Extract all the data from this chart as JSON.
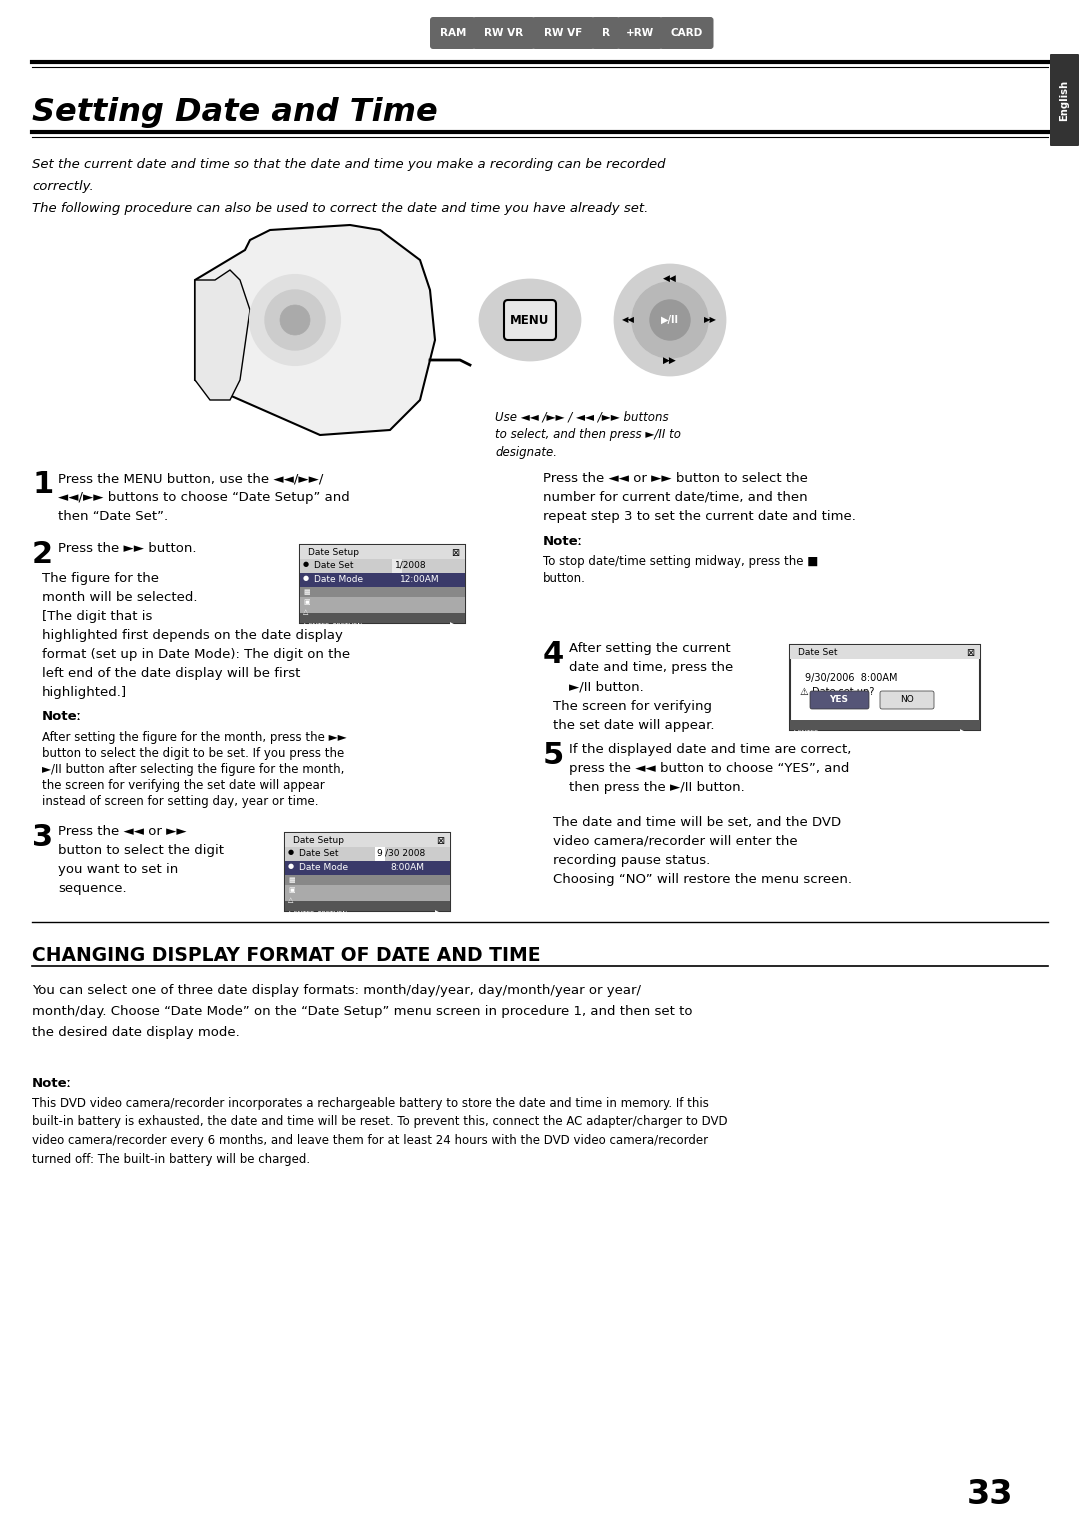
{
  "bg_color": "#ffffff",
  "page_number": "33",
  "tab_labels": [
    "RAM",
    "RW VR",
    "RW VF",
    "R",
    "+RW",
    "CARD"
  ],
  "tab_color": "#666666",
  "tab_text_color": "#ffffff",
  "title": "Setting Date and Time",
  "intro_line1": "Set the current date and time so that the date and time you make a recording can be recorded",
  "intro_line2": "correctly.",
  "intro_line3": "The following procedure can also be used to correct the date and time you have already set.",
  "menu_caption_line1": "Use ◄◄ /►► / ◄◄ /►► buttons",
  "menu_caption_line2": "to select, and then press ►/II to",
  "menu_caption_line3": "designate.",
  "s1_bold": "1",
  "s1_t1": "Press the MENU button, use the ◄◄/►►/",
  "s1_t2": "◄◄/►► buttons to choose “Date Setup” and",
  "s1_t3": "then “Date Set”.",
  "s2_bold": "2",
  "s2_t1": "Press the ►► button.",
  "s2_sub1": "The figure for the",
  "s2_sub2": "month will be selected.",
  "s2_sub3": "[The digit that is",
  "s2_sub4": "highlighted first depends on the date display",
  "s2_sub5": "format (set up in Date Mode): The digit on the",
  "s2_sub6": "left end of the date display will be first",
  "s2_sub7": "highlighted.]",
  "s2_note_hdr": "Noteː",
  "s2_note1": "After setting the figure for the month, press the ►►",
  "s2_note2": "button to select the digit to be set. If you press the",
  "s2_note3": "►/II button after selecting the figure for the month,",
  "s2_note4": "the screen for verifying the set date will appear",
  "s2_note5": "instead of screen for setting day, year or time.",
  "s3_bold": "3",
  "s3_t1": "Press the ◄◄ or ►►",
  "s3_t2": "button to select the digit",
  "s3_t3": "you want to set in",
  "s3_t4": "sequence.",
  "r_above_note_hdr": "Noteː",
  "r_above_note1": "To stop date/time setting midway, press the ■",
  "r_above_note2": "button.",
  "r_step1_t1": "Press the ◄◄ or ►► button to select the",
  "r_step1_t2": "number for current date/time, and then",
  "r_step1_t3": "repeat step 3 to set the current date and time.",
  "s4_bold": "4",
  "s4_t1": "After setting the current",
  "s4_t2": "date and time, press the",
  "s4_t3": "►/II button.",
  "s4_sub1": "The screen for verifying",
  "s4_sub2": "the set date will appear.",
  "s5_bold": "5",
  "s5_t1": "If the displayed date and time are correct,",
  "s5_t2": "press the ◄◄ button to choose “YES”, and",
  "s5_t3": "then press the ►/II button.",
  "s5_sub1": "The date and time will be set, and the DVD",
  "s5_sub2": "video camera/recorder will enter the",
  "s5_sub3": "recording pause status.",
  "s5_sub4": "Choosing “NO” will restore the menu screen.",
  "sec2_title": "CHANGING DISPLAY FORMAT OF DATE AND TIME",
  "sec2_b1": "You can select one of three date display formats: month/day/year, day/month/year or year/",
  "sec2_b2": "month/day. Choose “Date Mode” on the “Date Setup” menu screen in procedure 1, and then set to",
  "sec2_b3": "the desired date display mode.",
  "fn_hdr": "Noteː",
  "fn1": "This DVD video camera/recorder incorporates a rechargeable battery to store the date and time in memory. If this",
  "fn2": "built-in battery is exhausted, the date and time will be reset. To prevent this, connect the AC adapter/charger to DVD",
  "fn3": "video camera/recorder every 6 months, and leave them for at least 24 hours with the DVD video camera/recorder",
  "fn4": "turned off: The built-in battery will be charged."
}
